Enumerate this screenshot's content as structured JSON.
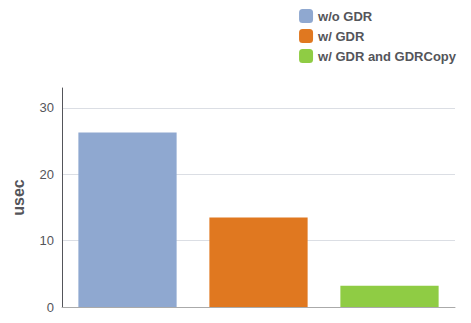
{
  "chart_data": {
    "type": "bar",
    "categories": [
      "w/o GDR",
      "w/ GDR",
      "w/ GDR and GDRCopy"
    ],
    "values": [
      26.3,
      13.5,
      3.2
    ],
    "colors": [
      "#8fa8d0",
      "#e07820",
      "#8fcc44"
    ],
    "ylabel": "usec",
    "ylim": [
      0,
      33
    ],
    "yticks": [
      0,
      10,
      20,
      30
    ],
    "grid": true,
    "legend": "upper right",
    "tick_labels": "y"
  }
}
